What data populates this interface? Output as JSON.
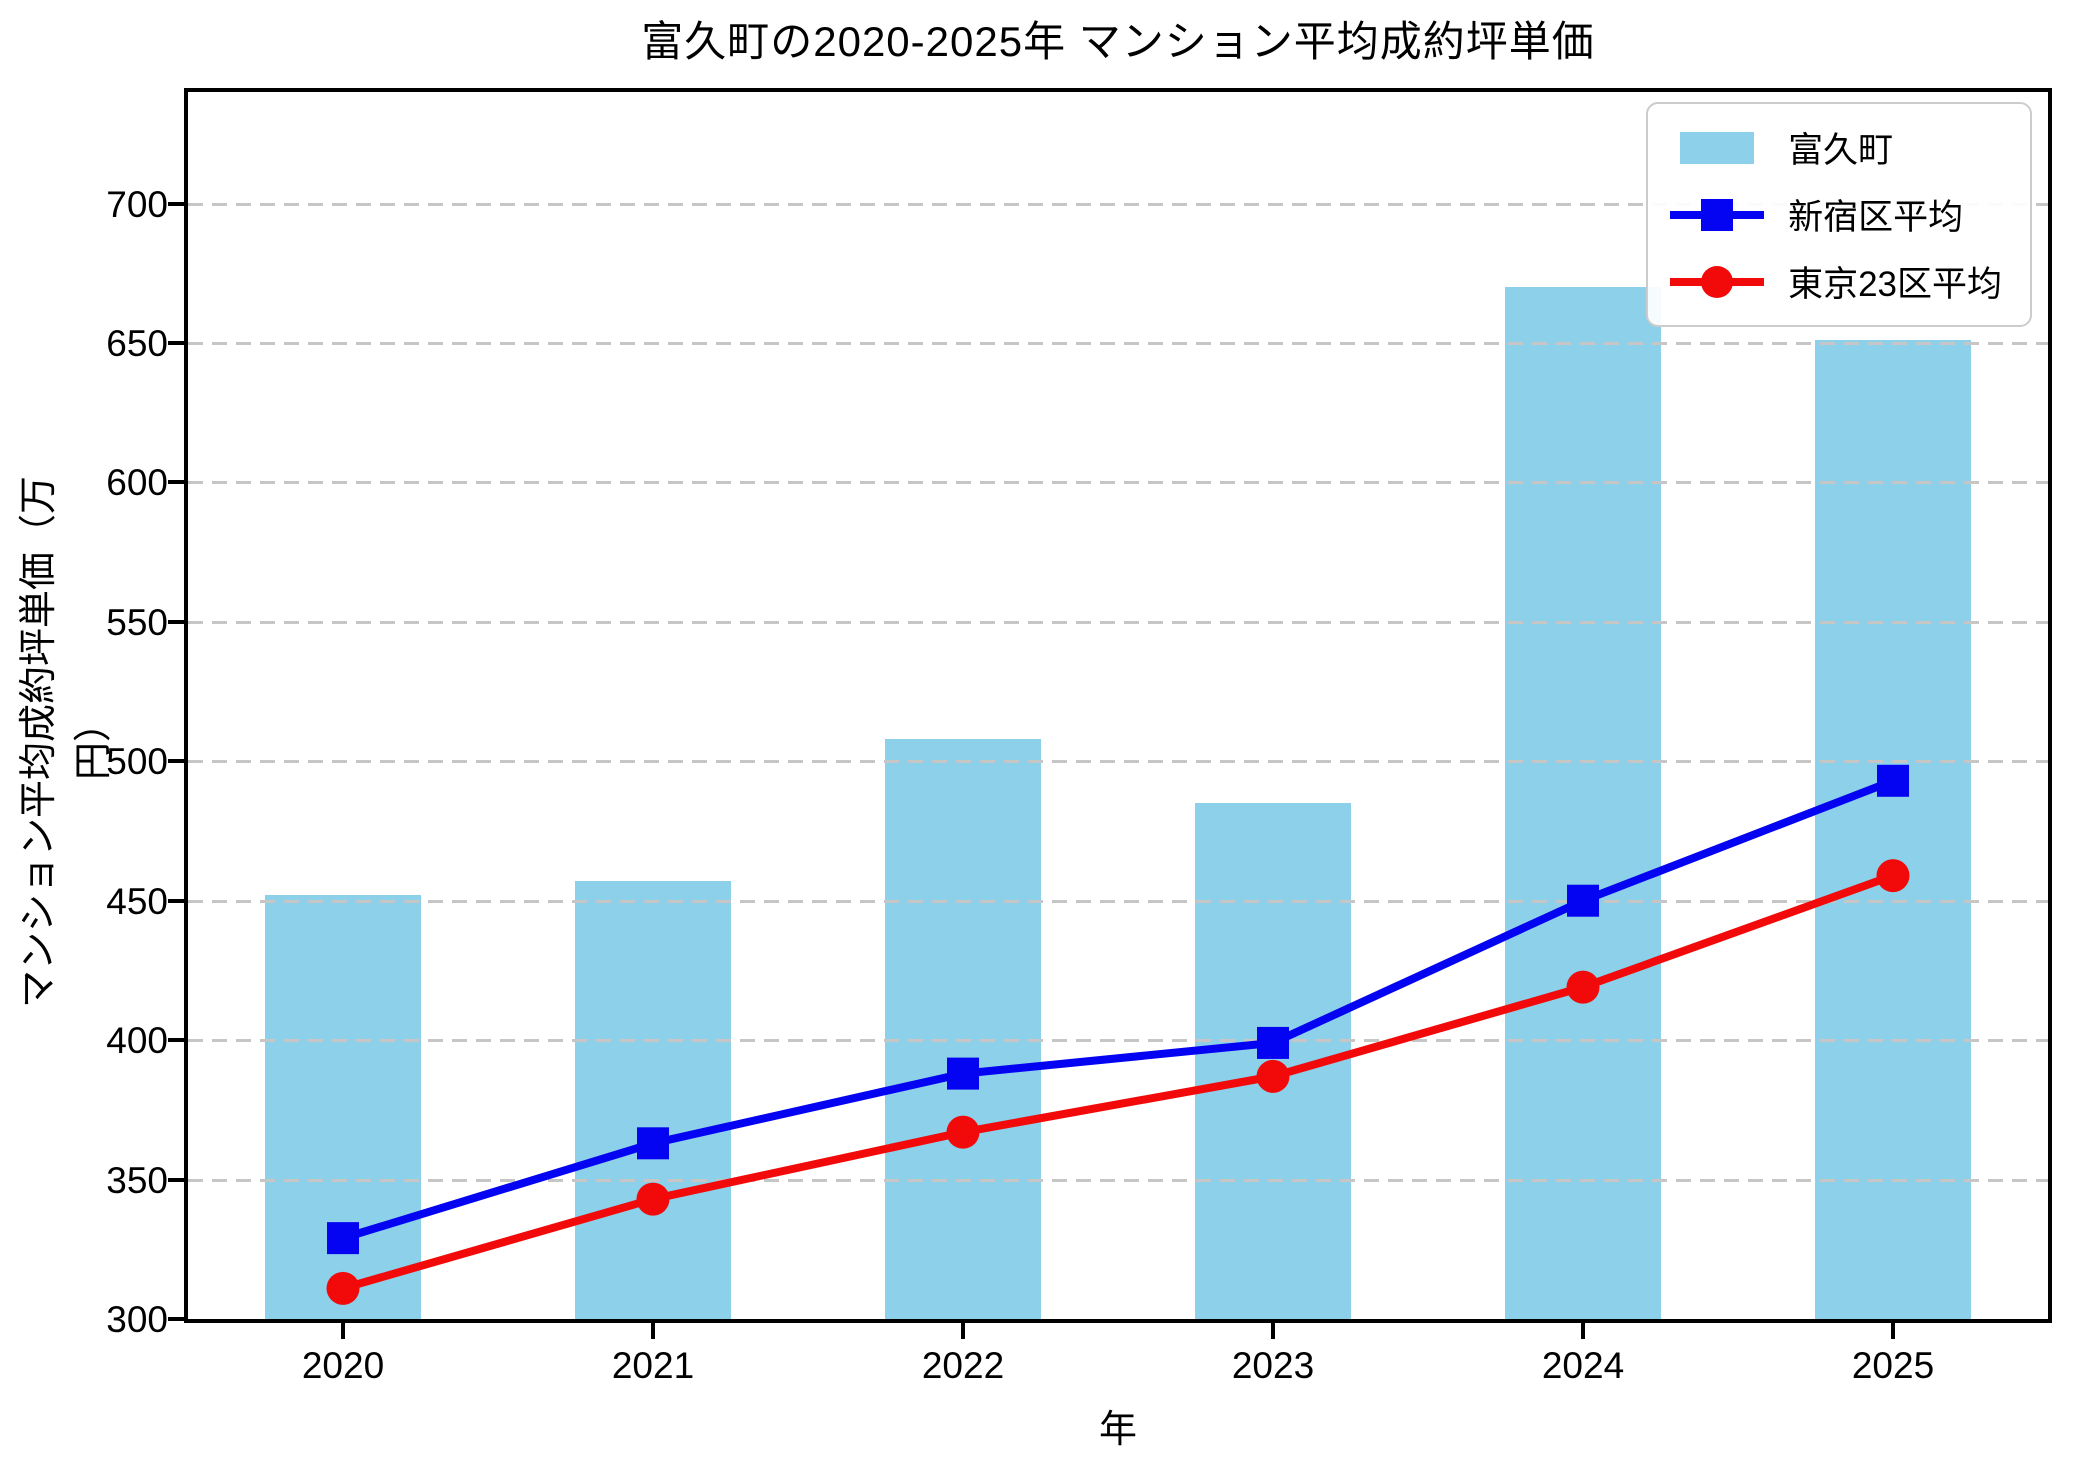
{
  "chart_data": {
    "type": "bar+line",
    "title": "富久町の2020-2025年 マンション平均成約坪単価",
    "xlabel": "年",
    "ylabel": "マンション平均成約坪単価（万円）",
    "categories": [
      "2020",
      "2021",
      "2022",
      "2023",
      "2024",
      "2025"
    ],
    "series": [
      {
        "name": "富久町",
        "type": "bar",
        "marker": "rect",
        "color": "#8CD0E9",
        "values": [
          452,
          457,
          508,
          485,
          670,
          651
        ]
      },
      {
        "name": "新宿区平均",
        "type": "line",
        "marker": "square",
        "color": "#0404F2",
        "values": [
          329,
          363,
          388,
          399,
          450,
          493
        ]
      },
      {
        "name": "東京23区平均",
        "type": "line",
        "marker": "circle",
        "color": "#F20A0A",
        "values": [
          311,
          343,
          367,
          387,
          419,
          459
        ]
      }
    ],
    "ylim": [
      300,
      740
    ],
    "yticks": [
      300,
      350,
      400,
      450,
      500,
      550,
      600,
      650,
      700
    ],
    "grid": "horizontal-dashed-above-bars",
    "grid_color": "#c6c6c6",
    "legend_position": "upper right",
    "background": "#ffffff"
  }
}
